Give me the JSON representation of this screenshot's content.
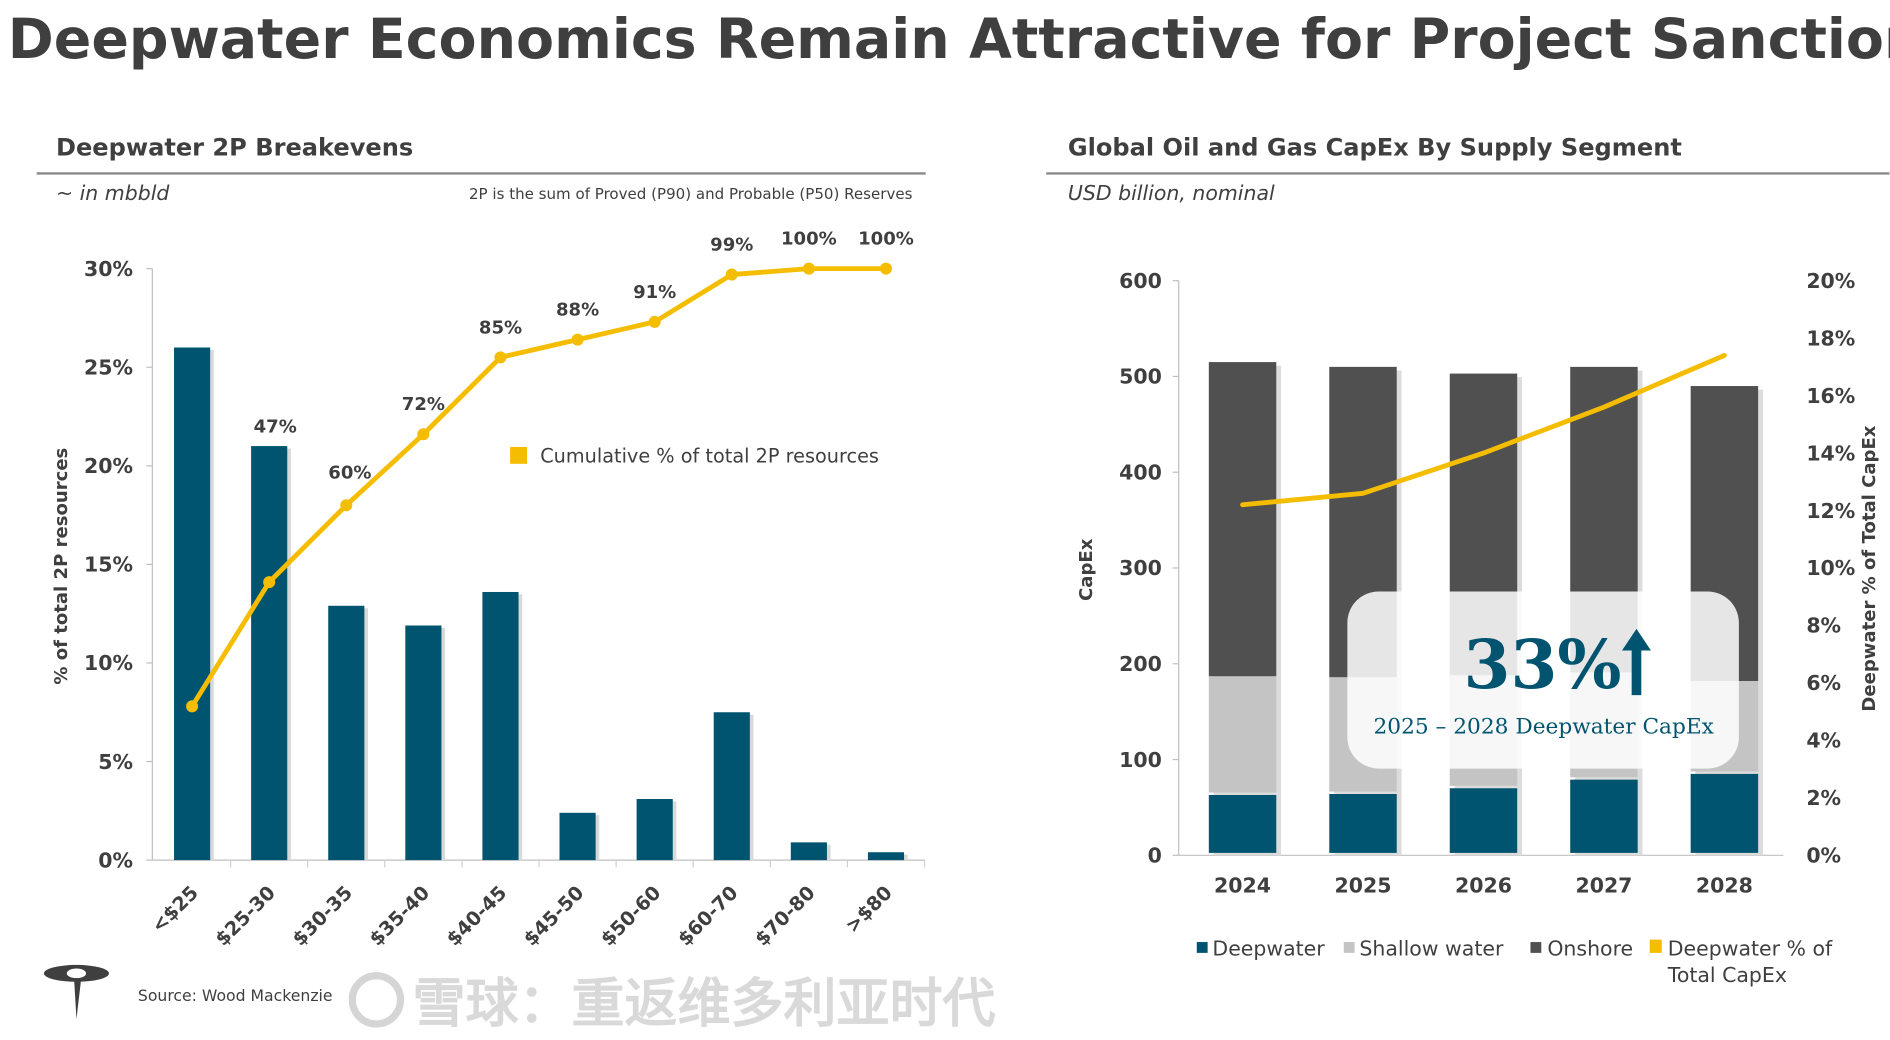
{
  "title": "Deepwater Economics Remain Attractive for Project Sanctioning",
  "source": "Source: Wood Mackenzie",
  "colors": {
    "teal": "#00546f",
    "gold": "#f5bd00",
    "dark": "#505050",
    "light": "#c4c4c4",
    "text": "#3f3f3f"
  },
  "watermark": "雪球：重返维多利亚时代",
  "left_panel": {
    "title": "Deepwater 2P Breakevens",
    "unit": "~ in mbbld",
    "note": "2P is the sum of Proved (P90) and Probable (P50) Reserves"
  },
  "right_panel": {
    "title": "Global Oil and Gas CapEx By Supply Segment",
    "unit": "USD billion, nominal",
    "callout": {
      "value": "33%",
      "label": "2025 – 2028 Deepwater CapEx"
    }
  },
  "chart_data": [
    {
      "type": "bar",
      "title": "Deepwater 2P Breakevens",
      "ylabel": "% of total 2P resources",
      "ylim": [
        0,
        30
      ],
      "yticks": [
        "0%",
        "5%",
        "10%",
        "15%",
        "20%",
        "25%",
        "30%"
      ],
      "categories": [
        "<$25",
        "$25-30",
        "$30-35",
        "$35-40",
        "$40-45",
        "$45-50",
        "$50-60",
        "$60-70",
        "$70-80",
        ">$80"
      ],
      "values": [
        26.0,
        21.0,
        12.9,
        11.9,
        13.6,
        2.4,
        3.1,
        7.5,
        0.9,
        0.4
      ],
      "line": {
        "name": "Cumulative % of total 2P resources",
        "values": [
          26,
          47,
          60,
          72,
          85,
          88,
          91,
          99,
          100,
          100
        ],
        "labels": [
          "",
          "47%",
          "60%",
          "72%",
          "85%",
          "88%",
          "91%",
          "99%",
          "100%",
          "100%"
        ],
        "ylim": [
          0,
          100
        ]
      },
      "legend": "center-right"
    },
    {
      "type": "bar",
      "stacked": true,
      "title": "Global Oil and Gas CapEx By Supply Segment",
      "ylabel": "CapEx",
      "y2label": "Deepwater % of Total CapEx",
      "ylim": [
        0,
        600
      ],
      "y2lim": [
        0,
        20
      ],
      "yticks": [
        "0",
        "100",
        "200",
        "300",
        "400",
        "500",
        "600"
      ],
      "y2ticks": [
        "0%",
        "2%",
        "4%",
        "6%",
        "8%",
        "10%",
        "12%",
        "14%",
        "16%",
        "18%",
        "20%"
      ],
      "categories": [
        "2024",
        "2025",
        "2026",
        "2027",
        "2028"
      ],
      "series": [
        {
          "name": "Deepwater",
          "values": [
            63,
            64,
            70,
            79,
            85
          ]
        },
        {
          "name": "Shallow water",
          "values": [
            124,
            122,
            118,
            112,
            97
          ]
        },
        {
          "name": "Onshore",
          "values": [
            328,
            324,
            315,
            319,
            308
          ]
        }
      ],
      "line": {
        "name": "Deepwater % of Total CapEx",
        "values": [
          12.2,
          12.6,
          14.0,
          15.6,
          17.4
        ]
      },
      "legend": "bottom"
    }
  ]
}
